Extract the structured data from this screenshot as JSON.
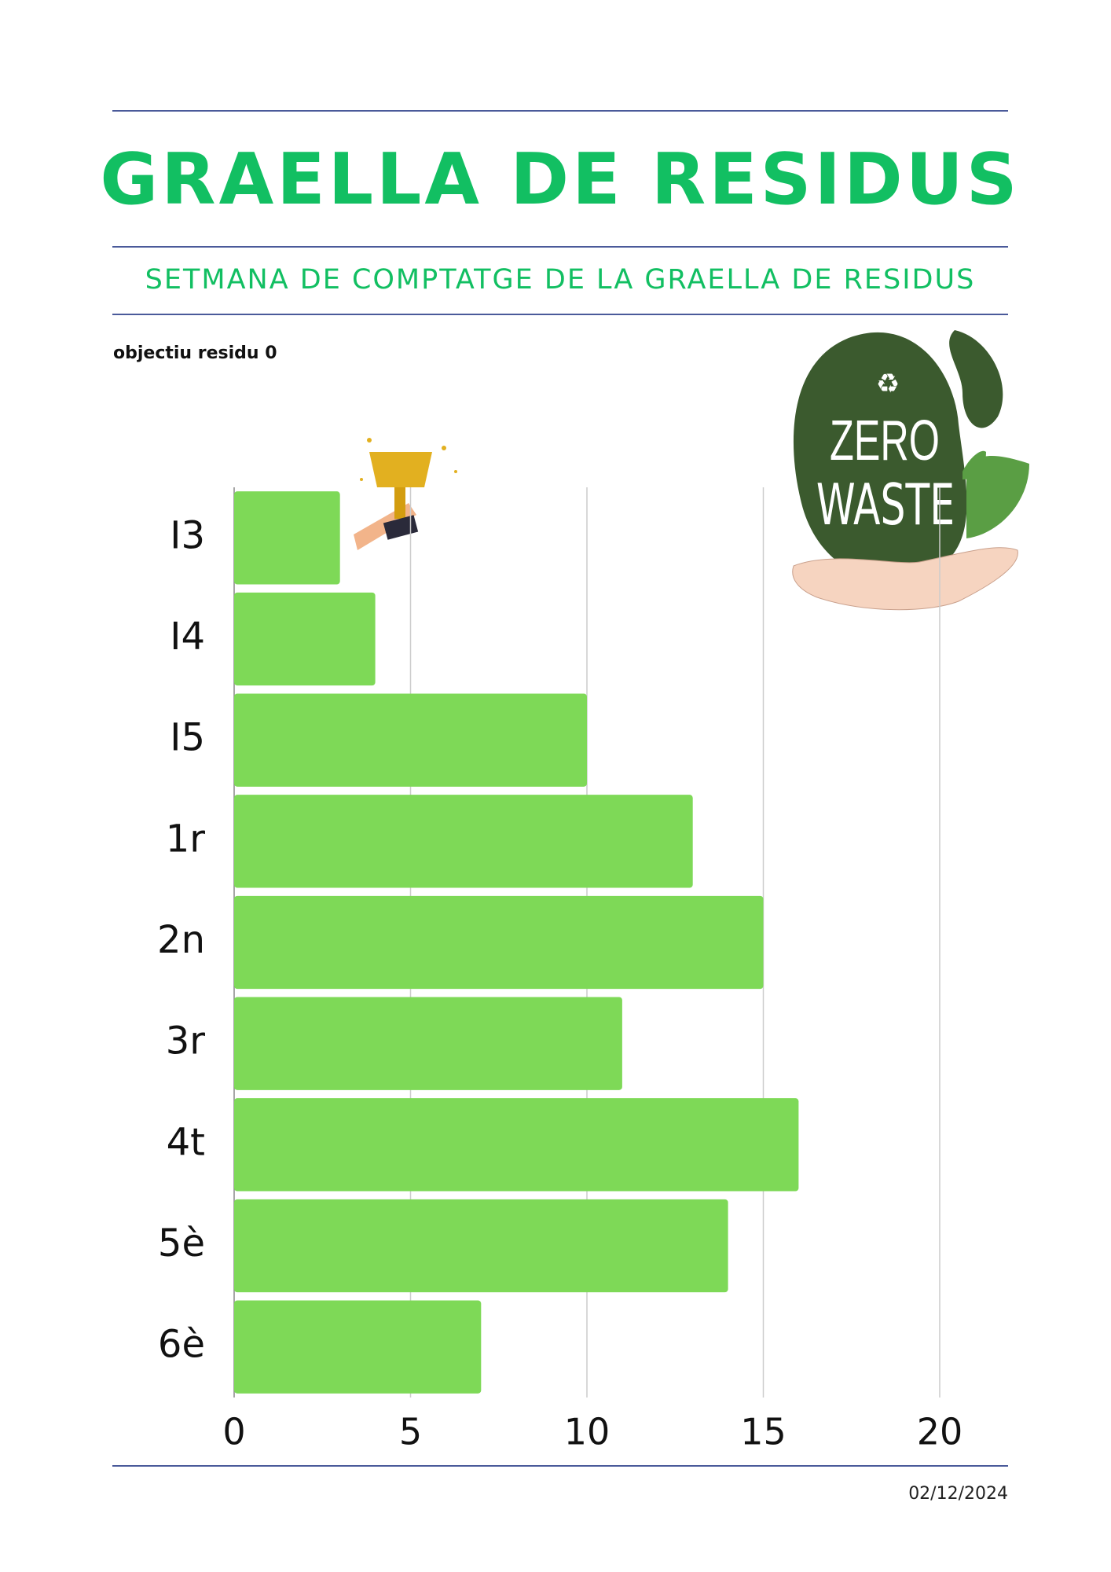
{
  "header": {
    "title": "GRAELLA DE RESIDUS",
    "subtitle": "SETMANA DE COMPTATGE DE LA GRAELLA DE RESIDUS",
    "note": "objectiu residu 0"
  },
  "logo": {
    "line1": "ZERO",
    "line2": "WASTE"
  },
  "chart_data": {
    "type": "hbar",
    "categories": [
      "I3",
      "I4",
      "I5",
      "1r",
      "2n",
      "3r",
      "4t",
      "5è",
      "6è"
    ],
    "values": [
      3,
      4,
      10,
      13,
      15,
      11,
      16,
      14,
      7
    ],
    "color": "#7ed957",
    "xlim": [
      0,
      20
    ],
    "xticks": [
      0,
      5,
      10,
      15,
      20
    ],
    "grid": true
  },
  "footer": {
    "date": "02/12/2024"
  }
}
